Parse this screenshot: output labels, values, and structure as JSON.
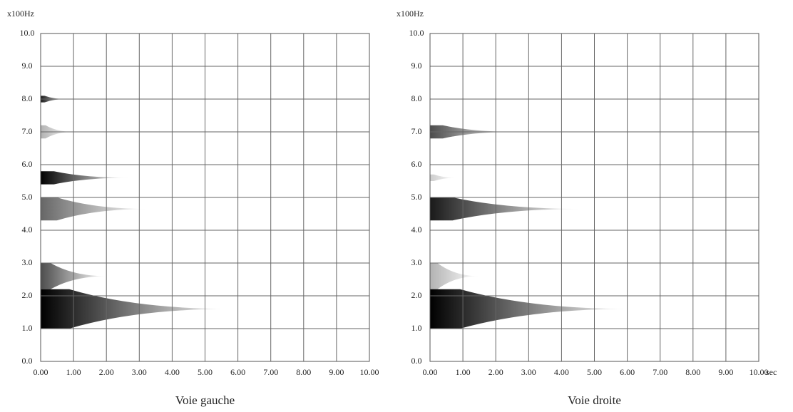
{
  "chart_data": [
    {
      "type": "spectrogram",
      "ylabel": "x100Hz",
      "caption": "Voie gauche",
      "xlim": [
        0,
        10
      ],
      "ylim": [
        0,
        10
      ],
      "grid": true,
      "color": "#000000",
      "xticks": [
        {
          "value": 0,
          "label": "0.00"
        },
        {
          "value": 1,
          "label": "1.00"
        },
        {
          "value": 2,
          "label": "2.00"
        },
        {
          "value": 3,
          "label": "3.00"
        },
        {
          "value": 4,
          "label": "4.00"
        },
        {
          "value": 5,
          "label": "5.00"
        },
        {
          "value": 6,
          "label": "6.00"
        },
        {
          "value": 7,
          "label": "7.00"
        },
        {
          "value": 8,
          "label": "8.00"
        },
        {
          "value": 9,
          "label": "9.00"
        },
        {
          "value": 10,
          "label": "10.00"
        }
      ],
      "yticks": [
        {
          "value": 0,
          "label": "0.0"
        },
        {
          "value": 1,
          "label": "1.0"
        },
        {
          "value": 2,
          "label": "2.0"
        },
        {
          "value": 3,
          "label": "3.0"
        },
        {
          "value": 4,
          "label": "4.0"
        },
        {
          "value": 5,
          "label": "5.0"
        },
        {
          "value": 6,
          "label": "6.0"
        },
        {
          "value": 7,
          "label": "7.0"
        },
        {
          "value": 8,
          "label": "8.0"
        },
        {
          "value": 9,
          "label": "9.0"
        },
        {
          "value": 10,
          "label": "10.0"
        }
      ],
      "bands": [
        {
          "low": 7.9,
          "high": 8.1,
          "end": 0.8,
          "strength": 0.9
        },
        {
          "low": 6.8,
          "high": 7.2,
          "end": 1.0,
          "strength": 0.3
        },
        {
          "low": 5.4,
          "high": 5.8,
          "end": 2.7,
          "strength": 1
        },
        {
          "low": 4.3,
          "high": 5.0,
          "end": 3.3,
          "strength": 0.6
        },
        {
          "low": 2.2,
          "high": 3.0,
          "end": 2.0,
          "strength": 0.7
        },
        {
          "low": 1.0,
          "high": 2.2,
          "end": 5.8,
          "strength": 1
        }
      ]
    },
    {
      "type": "spectrogram",
      "ylabel": "x100Hz",
      "xlabel": "sec",
      "caption": "Voie droite",
      "xlim": [
        0,
        10
      ],
      "ylim": [
        0,
        10
      ],
      "grid": true,
      "color": "#000000",
      "xticks": [
        {
          "value": 0,
          "label": "0.00"
        },
        {
          "value": 1,
          "label": "1.00"
        },
        {
          "value": 2,
          "label": "2.00"
        },
        {
          "value": 3,
          "label": "3.00"
        },
        {
          "value": 4,
          "label": "4.00"
        },
        {
          "value": 5,
          "label": "5.00"
        },
        {
          "value": 6,
          "label": "6.00"
        },
        {
          "value": 7,
          "label": "7.00"
        },
        {
          "value": 8,
          "label": "8.00"
        },
        {
          "value": 9,
          "label": "9.00"
        },
        {
          "value": 10,
          "label": "10.00"
        }
      ],
      "yticks": [
        {
          "value": 0,
          "label": "0.0"
        },
        {
          "value": 1,
          "label": "1.0"
        },
        {
          "value": 2,
          "label": "2.0"
        },
        {
          "value": 3,
          "label": "3.0"
        },
        {
          "value": 4,
          "label": "4.0"
        },
        {
          "value": 5,
          "label": "5.0"
        },
        {
          "value": 6,
          "label": "6.0"
        },
        {
          "value": 7,
          "label": "7.0"
        },
        {
          "value": 8,
          "label": "8.0"
        },
        {
          "value": 9,
          "label": "9.0"
        },
        {
          "value": 10,
          "label": "10.0"
        }
      ],
      "bands": [
        {
          "low": 6.8,
          "high": 7.2,
          "end": 2.6,
          "strength": 0.7
        },
        {
          "low": 5.5,
          "high": 5.7,
          "end": 0.8,
          "strength": 0.2
        },
        {
          "low": 4.3,
          "high": 5.0,
          "end": 4.6,
          "strength": 0.9
        },
        {
          "low": 2.2,
          "high": 3.0,
          "end": 1.5,
          "strength": 0.3
        },
        {
          "low": 1.0,
          "high": 2.2,
          "end": 6.1,
          "strength": 1
        }
      ]
    }
  ]
}
